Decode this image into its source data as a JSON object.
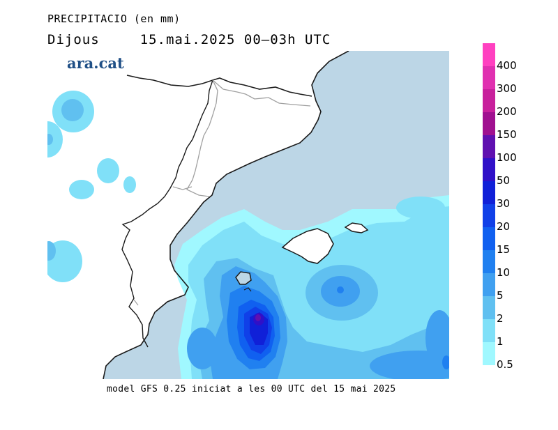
{
  "header": {
    "title": "PRECIPITACIO (en mm)",
    "day": "Dijous",
    "date_range": "15.mai.2025 00–03h UTC"
  },
  "logo": {
    "text": "ara.cat",
    "color": "#1f4f86"
  },
  "footer": {
    "model_note": "model GFS 0.25 iniciat a les 00 UTC del 15 mai 2025"
  },
  "legend": {
    "title": "",
    "levels": [
      {
        "label": "400",
        "color": "#ff40c0"
      },
      {
        "label": "300",
        "color": "#e030b0"
      },
      {
        "label": "200",
        "color": "#c8209c"
      },
      {
        "label": "150",
        "color": "#a01090"
      },
      {
        "label": "100",
        "color": "#6010b0"
      },
      {
        "label": "50",
        "color": "#3010c8"
      },
      {
        "label": "30",
        "color": "#1020d8"
      },
      {
        "label": "20",
        "color": "#1040e8"
      },
      {
        "label": "15",
        "color": "#1060f0"
      },
      {
        "label": "10",
        "color": "#2080f0"
      },
      {
        "label": "5",
        "color": "#40a0f0"
      },
      {
        "label": "2",
        "color": "#60c0f0"
      },
      {
        "label": "1",
        "color": "#80e0f8"
      },
      {
        "label": "0.5",
        "color": "#a0f8ff"
      }
    ]
  },
  "map_colors": {
    "sea": "#bcd6e6",
    "land": "#ffffff",
    "coast": "#1a1a1a",
    "border": "#a0a0a0"
  }
}
